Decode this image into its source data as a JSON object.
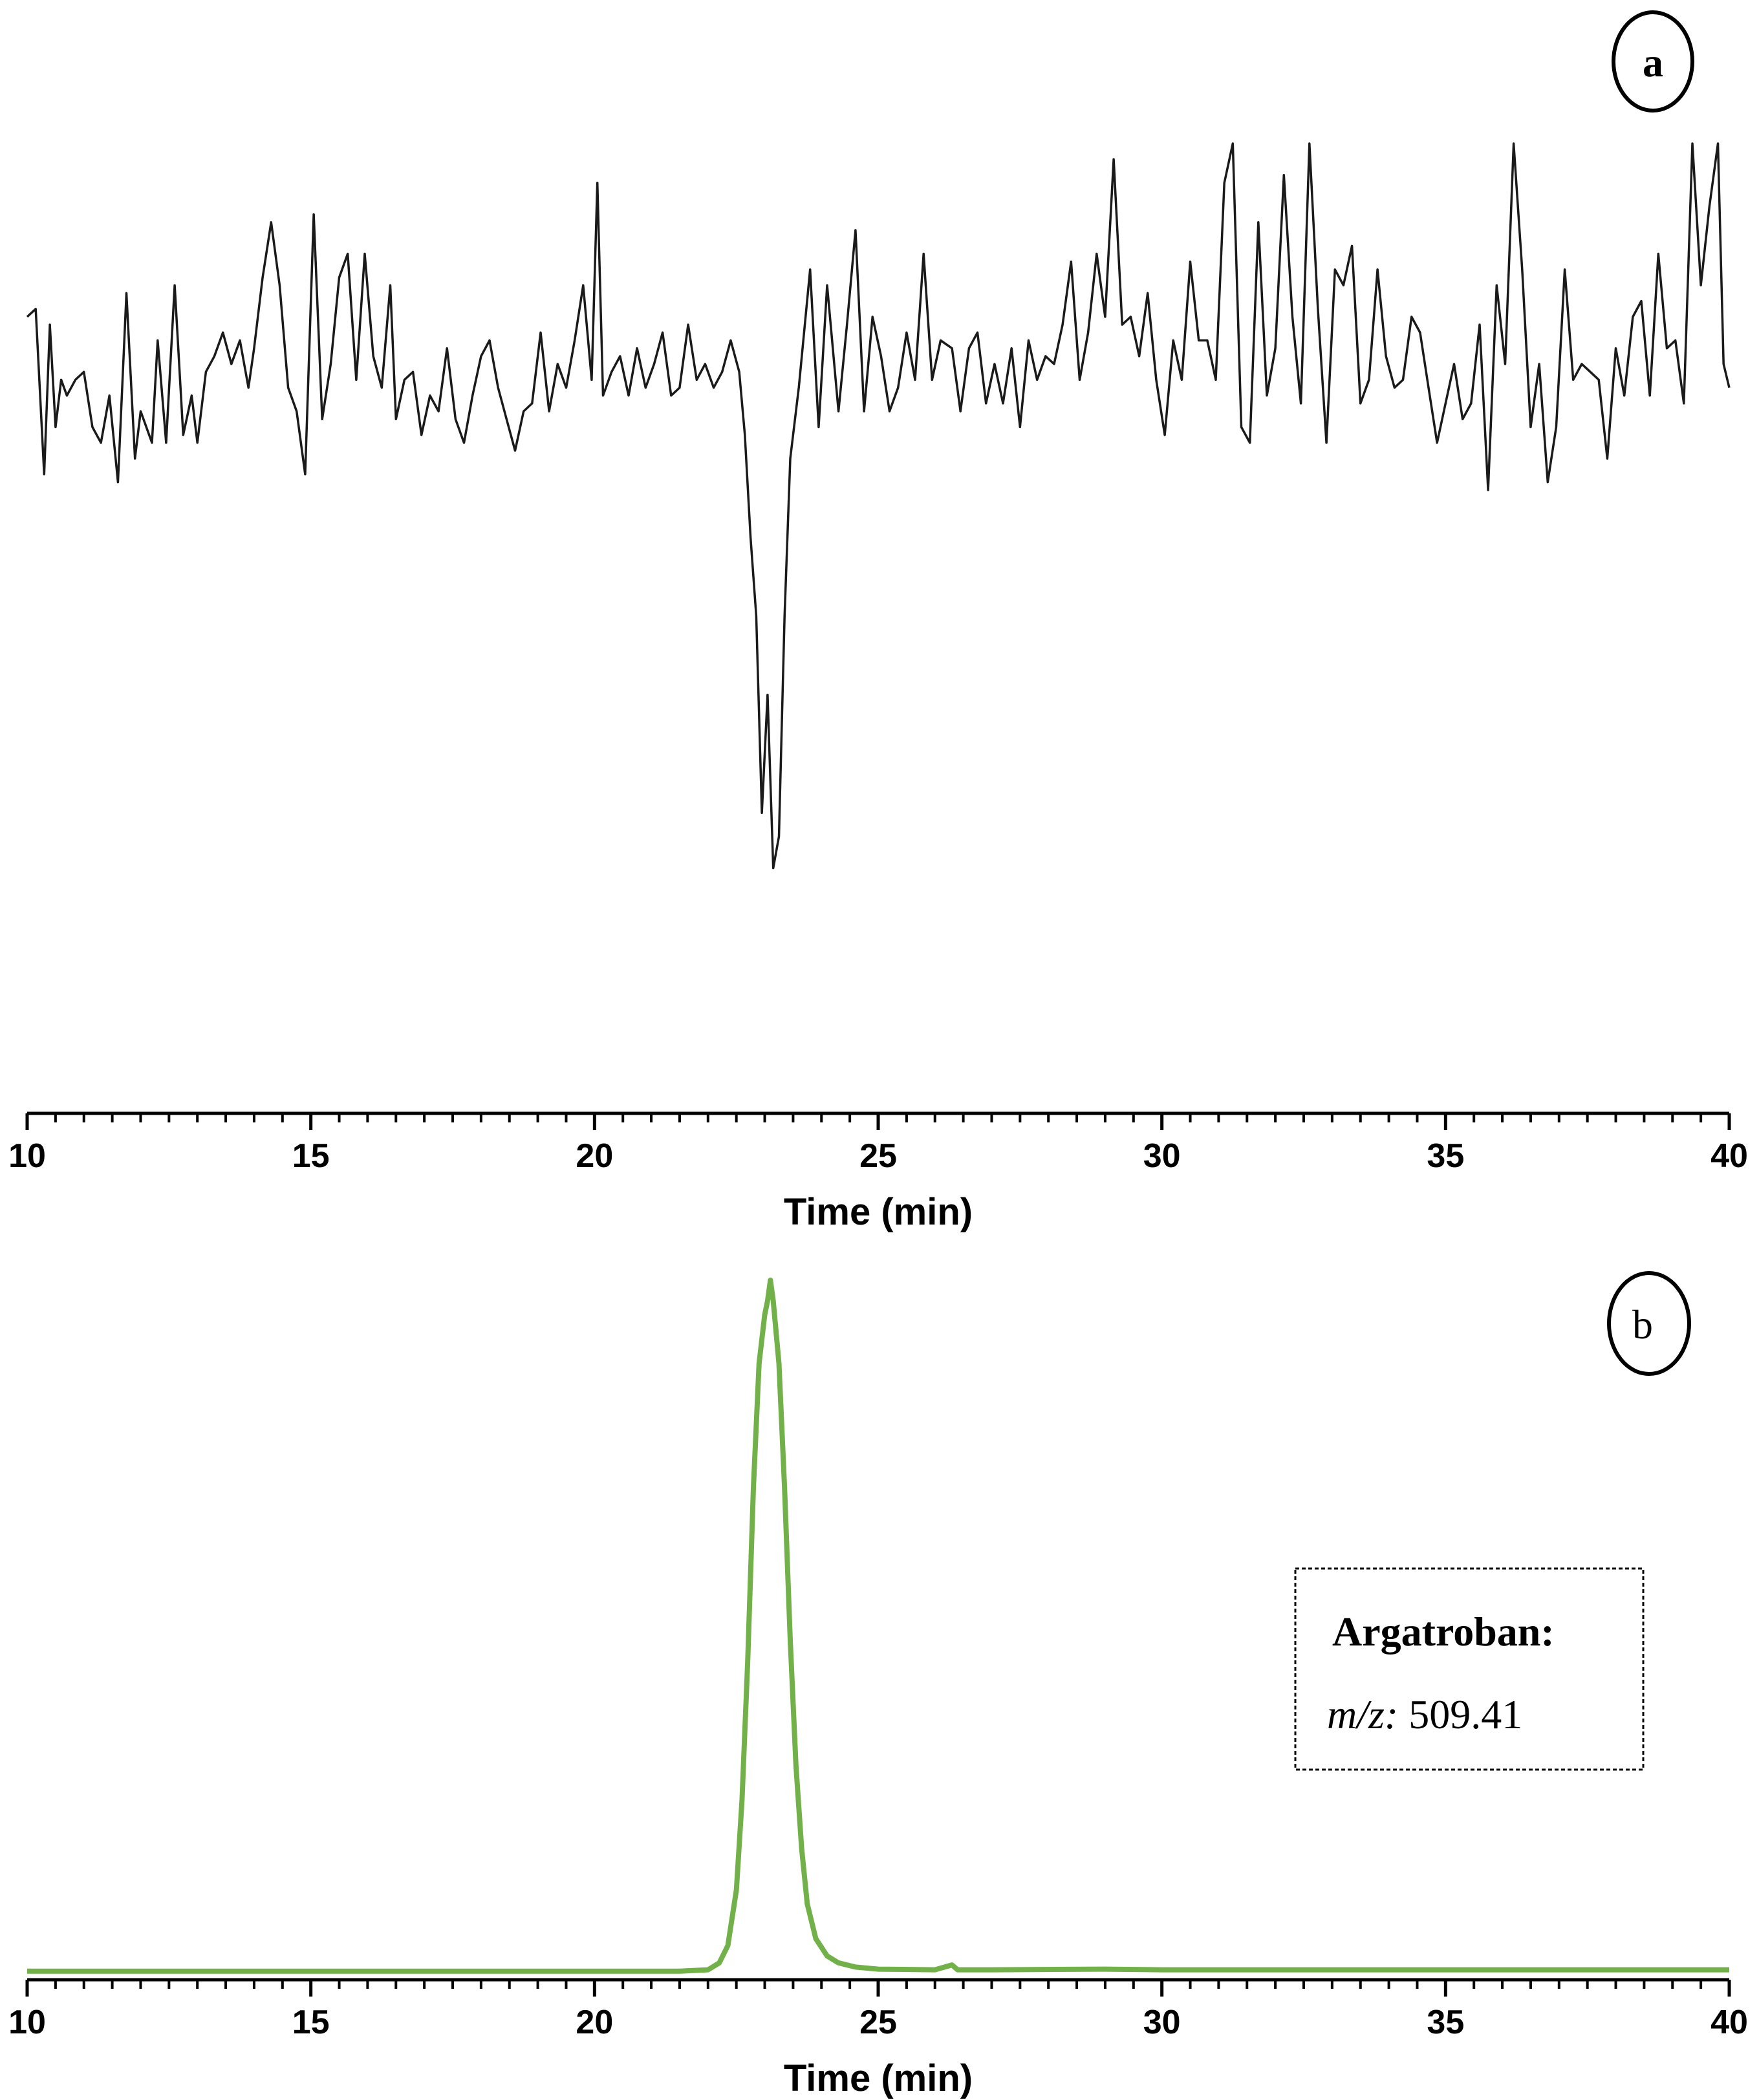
{
  "chart_data": [
    {
      "panel": "a",
      "type": "line",
      "xlabel": "Time (min)",
      "ylabel": "",
      "xlim": [
        10,
        40
      ],
      "xticks": [
        "10",
        "15",
        "20",
        "25",
        "30",
        "35",
        "40"
      ],
      "y_ticks_shown": false,
      "y_range_note_units": "relative intensity (0 = top of panel, 100 = axis line)",
      "ylim": [
        0,
        100
      ],
      "grid": false,
      "color": "#1a1a1a",
      "series": [
        {
          "values": [
            [
              10.0,
              22
            ],
            [
              10.15,
              21
            ],
            [
              10.3,
              42
            ],
            [
              10.4,
              23
            ],
            [
              10.5,
              36
            ],
            [
              10.6,
              30
            ],
            [
              10.7,
              32
            ],
            [
              10.85,
              30
            ],
            [
              11.0,
              29
            ],
            [
              11.15,
              36
            ],
            [
              11.3,
              38
            ],
            [
              11.45,
              32
            ],
            [
              11.6,
              43
            ],
            [
              11.75,
              19
            ],
            [
              11.9,
              40
            ],
            [
              12.0,
              34
            ],
            [
              12.2,
              38
            ],
            [
              12.3,
              25
            ],
            [
              12.45,
              38
            ],
            [
              12.6,
              18
            ],
            [
              12.75,
              37
            ],
            [
              12.9,
              32
            ],
            [
              13.0,
              38
            ],
            [
              13.15,
              29
            ],
            [
              13.3,
              27
            ],
            [
              13.45,
              24
            ],
            [
              13.6,
              28
            ],
            [
              13.75,
              25
            ],
            [
              13.9,
              31
            ],
            [
              14.0,
              26
            ],
            [
              14.15,
              17
            ],
            [
              14.3,
              10
            ],
            [
              14.45,
              18
            ],
            [
              14.6,
              31
            ],
            [
              14.75,
              34
            ],
            [
              14.9,
              42
            ],
            [
              15.05,
              9
            ],
            [
              15.2,
              35
            ],
            [
              15.35,
              28
            ],
            [
              15.5,
              17
            ],
            [
              15.65,
              14
            ],
            [
              15.8,
              30
            ],
            [
              15.95,
              14
            ],
            [
              16.1,
              27
            ],
            [
              16.25,
              31
            ],
            [
              16.4,
              18
            ],
            [
              16.5,
              35
            ],
            [
              16.65,
              30
            ],
            [
              16.8,
              29
            ],
            [
              16.95,
              37
            ],
            [
              17.1,
              32
            ],
            [
              17.25,
              34
            ],
            [
              17.4,
              26
            ],
            [
              17.55,
              35
            ],
            [
              17.7,
              38
            ],
            [
              17.85,
              32
            ],
            [
              18.0,
              27
            ],
            [
              18.15,
              25
            ],
            [
              18.3,
              31
            ],
            [
              18.45,
              35
            ],
            [
              18.6,
              39
            ],
            [
              18.75,
              34
            ],
            [
              18.9,
              33
            ],
            [
              19.05,
              24
            ],
            [
              19.2,
              34
            ],
            [
              19.35,
              28
            ],
            [
              19.5,
              31
            ],
            [
              19.65,
              25
            ],
            [
              19.8,
              18
            ],
            [
              19.95,
              30
            ],
            [
              20.05,
              5
            ],
            [
              20.15,
              32
            ],
            [
              20.3,
              29
            ],
            [
              20.45,
              27
            ],
            [
              20.6,
              32
            ],
            [
              20.75,
              26
            ],
            [
              20.9,
              31
            ],
            [
              21.05,
              28
            ],
            [
              21.2,
              24
            ],
            [
              21.35,
              32
            ],
            [
              21.5,
              31
            ],
            [
              21.65,
              23
            ],
            [
              21.8,
              30
            ],
            [
              21.95,
              28
            ],
            [
              22.1,
              31
            ],
            [
              22.25,
              29
            ],
            [
              22.4,
              25
            ],
            [
              22.55,
              29
            ],
            [
              22.65,
              37
            ],
            [
              22.75,
              50
            ],
            [
              22.85,
              60
            ],
            [
              22.95,
              85
            ],
            [
              23.05,
              70
            ],
            [
              23.15,
              92
            ],
            [
              23.25,
              88
            ],
            [
              23.35,
              60
            ],
            [
              23.45,
              40
            ],
            [
              23.6,
              31
            ],
            [
              23.8,
              16
            ],
            [
              23.95,
              36
            ],
            [
              24.1,
              18
            ],
            [
              24.3,
              34
            ],
            [
              24.45,
              23
            ],
            [
              24.6,
              11
            ],
            [
              24.75,
              34
            ],
            [
              24.9,
              22
            ],
            [
              25.05,
              27
            ],
            [
              25.2,
              34
            ],
            [
              25.35,
              31
            ],
            [
              25.5,
              24
            ],
            [
              25.65,
              30
            ],
            [
              25.8,
              14
            ],
            [
              25.95,
              30
            ],
            [
              26.1,
              25
            ],
            [
              26.3,
              26
            ],
            [
              26.45,
              34
            ],
            [
              26.6,
              26
            ],
            [
              26.75,
              24
            ],
            [
              26.9,
              33
            ],
            [
              27.05,
              28
            ],
            [
              27.2,
              33
            ],
            [
              27.35,
              26
            ],
            [
              27.5,
              36
            ],
            [
              27.65,
              25
            ],
            [
              27.8,
              30
            ],
            [
              27.95,
              27
            ],
            [
              28.1,
              28
            ],
            [
              28.25,
              23
            ],
            [
              28.4,
              15
            ],
            [
              28.55,
              30
            ],
            [
              28.7,
              24
            ],
            [
              28.85,
              14
            ],
            [
              29.0,
              22
            ],
            [
              29.15,
              2
            ],
            [
              29.3,
              23
            ],
            [
              29.45,
              22
            ],
            [
              29.6,
              27
            ],
            [
              29.75,
              19
            ],
            [
              29.9,
              30
            ],
            [
              30.05,
              37
            ],
            [
              30.2,
              25
            ],
            [
              30.35,
              30
            ],
            [
              30.5,
              15
            ],
            [
              30.65,
              25
            ],
            [
              30.8,
              25
            ],
            [
              30.95,
              30
            ],
            [
              31.1,
              5
            ],
            [
              31.25,
              0
            ],
            [
              31.4,
              36
            ],
            [
              31.55,
              38
            ],
            [
              31.7,
              10
            ],
            [
              31.85,
              32
            ],
            [
              32.0,
              26
            ],
            [
              32.15,
              4
            ],
            [
              32.3,
              22
            ],
            [
              32.45,
              33
            ],
            [
              32.6,
              0
            ],
            [
              32.75,
              21
            ],
            [
              32.9,
              38
            ],
            [
              33.05,
              16
            ],
            [
              33.2,
              18
            ],
            [
              33.35,
              13
            ],
            [
              33.5,
              33
            ],
            [
              33.65,
              30
            ],
            [
              33.8,
              16
            ],
            [
              33.95,
              27
            ],
            [
              34.1,
              31
            ],
            [
              34.25,
              30
            ],
            [
              34.4,
              22
            ],
            [
              34.55,
              24
            ],
            [
              34.7,
              31
            ],
            [
              34.85,
              38
            ],
            [
              35.0,
              33
            ],
            [
              35.15,
              28
            ],
            [
              35.3,
              35
            ],
            [
              35.45,
              33
            ],
            [
              35.6,
              23
            ],
            [
              35.75,
              44
            ],
            [
              35.9,
              18
            ],
            [
              36.05,
              28
            ],
            [
              36.2,
              0
            ],
            [
              36.35,
              16
            ],
            [
              36.5,
              36
            ],
            [
              36.65,
              28
            ],
            [
              36.8,
              43
            ],
            [
              36.95,
              36
            ],
            [
              37.1,
              16
            ],
            [
              37.25,
              30
            ],
            [
              37.4,
              28
            ],
            [
              37.55,
              29
            ],
            [
              37.7,
              30
            ],
            [
              37.85,
              40
            ],
            [
              38.0,
              26
            ],
            [
              38.15,
              32
            ],
            [
              38.3,
              22
            ],
            [
              38.45,
              20
            ],
            [
              38.6,
              32
            ],
            [
              38.75,
              14
            ],
            [
              38.9,
              26
            ],
            [
              39.05,
              25
            ],
            [
              39.2,
              33
            ],
            [
              39.35,
              0
            ],
            [
              39.5,
              18
            ],
            [
              39.65,
              8
            ],
            [
              39.8,
              0
            ],
            [
              39.9,
              28
            ],
            [
              40.0,
              31
            ]
          ]
        }
      ]
    },
    {
      "panel": "b",
      "type": "line",
      "xlabel": "Time (min)",
      "ylabel": "",
      "xlim": [
        10,
        40
      ],
      "xticks": [
        "10",
        "15",
        "20",
        "25",
        "30",
        "35",
        "40"
      ],
      "y_ticks_shown": false,
      "ylim": [
        0,
        100
      ],
      "grid": false,
      "color": "#72b04a",
      "series": [
        {
          "values": [
            [
              10.0,
              0.3
            ],
            [
              12.0,
              0.3
            ],
            [
              14.0,
              0.3
            ],
            [
              16.0,
              0.3
            ],
            [
              18.0,
              0.3
            ],
            [
              20.0,
              0.3
            ],
            [
              21.5,
              0.3
            ],
            [
              22.0,
              0.5
            ],
            [
              22.2,
              1.5
            ],
            [
              22.35,
              4
            ],
            [
              22.5,
              12
            ],
            [
              22.6,
              25
            ],
            [
              22.7,
              45
            ],
            [
              22.8,
              70
            ],
            [
              22.9,
              88
            ],
            [
              23.0,
              95
            ],
            [
              23.05,
              97
            ],
            [
              23.1,
              100
            ],
            [
              23.15,
              97
            ],
            [
              23.25,
              88
            ],
            [
              23.35,
              70
            ],
            [
              23.45,
              48
            ],
            [
              23.55,
              30
            ],
            [
              23.65,
              18
            ],
            [
              23.75,
              10
            ],
            [
              23.9,
              5
            ],
            [
              24.1,
              2.5
            ],
            [
              24.3,
              1.5
            ],
            [
              24.6,
              0.9
            ],
            [
              25.0,
              0.6
            ],
            [
              26.0,
              0.5
            ],
            [
              26.3,
              1.2
            ],
            [
              26.4,
              0.5
            ],
            [
              27.0,
              0.5
            ],
            [
              29.0,
              0.6
            ],
            [
              30.0,
              0.5
            ],
            [
              32.0,
              0.5
            ],
            [
              35.0,
              0.5
            ],
            [
              38.0,
              0.5
            ],
            [
              40.0,
              0.5
            ]
          ]
        }
      ],
      "legend_box": {
        "title": "Argatroban:",
        "label_italic": "m/z:",
        "label_value": " 509.41"
      }
    }
  ]
}
